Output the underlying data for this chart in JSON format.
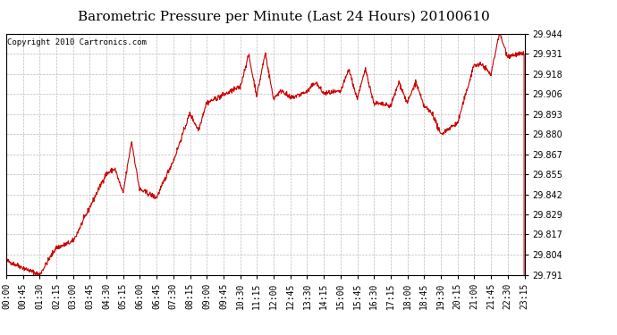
{
  "title": "Barometric Pressure per Minute (Last 24 Hours) 20100610",
  "copyright": "Copyright 2010 Cartronics.com",
  "line_color": "#cc0000",
  "bg_color": "#ffffff",
  "plot_bg_color": "#ffffff",
  "grid_color": "#bbbbbb",
  "yticks": [
    29.791,
    29.804,
    29.817,
    29.829,
    29.842,
    29.855,
    29.867,
    29.88,
    29.893,
    29.906,
    29.918,
    29.931,
    29.944
  ],
  "ylim": [
    29.791,
    29.944
  ],
  "xtick_labels": [
    "00:00",
    "00:45",
    "01:30",
    "02:15",
    "03:00",
    "03:45",
    "04:30",
    "05:15",
    "06:00",
    "06:45",
    "07:30",
    "08:15",
    "09:00",
    "09:45",
    "10:30",
    "11:15",
    "12:00",
    "12:45",
    "13:30",
    "14:15",
    "15:00",
    "15:45",
    "16:30",
    "17:15",
    "18:00",
    "18:45",
    "19:30",
    "20:15",
    "21:00",
    "21:45",
    "22:30",
    "23:15"
  ],
  "title_fontsize": 11,
  "copyright_fontsize": 6.5,
  "tick_fontsize": 7,
  "ytick_fontsize": 7
}
